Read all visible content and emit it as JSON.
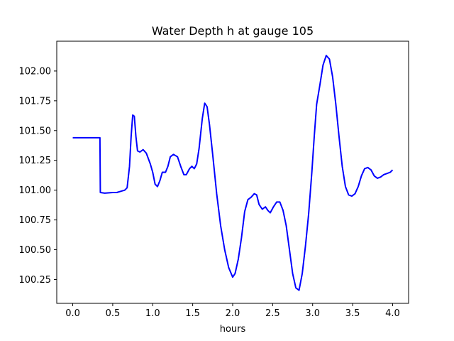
{
  "chart_data": {
    "type": "line",
    "title": "Water Depth h at gauge 105",
    "xlabel": "hours",
    "ylabel": "",
    "xlim": [
      -0.2,
      4.2
    ],
    "ylim": [
      100.05,
      102.25
    ],
    "x_ticks": [
      0.0,
      0.5,
      1.0,
      1.5,
      2.0,
      2.5,
      3.0,
      3.5,
      4.0
    ],
    "x_tick_labels": [
      "0.0",
      "0.5",
      "1.0",
      "1.5",
      "2.0",
      "2.5",
      "3.0",
      "3.5",
      "4.0"
    ],
    "y_ticks": [
      100.25,
      100.5,
      100.75,
      101.0,
      101.25,
      101.5,
      101.75,
      102.0
    ],
    "y_tick_labels": [
      "100.25",
      "100.50",
      "100.75",
      "101.00",
      "101.25",
      "101.50",
      "101.75",
      "102.00"
    ],
    "grid": false,
    "series": [
      {
        "color": "#0000ff",
        "points": [
          [
            0.0,
            101.44
          ],
          [
            0.1,
            101.44
          ],
          [
            0.2,
            101.44
          ],
          [
            0.3,
            101.44
          ],
          [
            0.34,
            101.44
          ],
          [
            0.345,
            100.98
          ],
          [
            0.4,
            100.975
          ],
          [
            0.5,
            100.98
          ],
          [
            0.55,
            100.98
          ],
          [
            0.6,
            100.99
          ],
          [
            0.65,
            101.0
          ],
          [
            0.68,
            101.02
          ],
          [
            0.71,
            101.2
          ],
          [
            0.73,
            101.45
          ],
          [
            0.75,
            101.63
          ],
          [
            0.77,
            101.62
          ],
          [
            0.79,
            101.45
          ],
          [
            0.81,
            101.33
          ],
          [
            0.84,
            101.32
          ],
          [
            0.88,
            101.34
          ],
          [
            0.92,
            101.31
          ],
          [
            0.97,
            101.22
          ],
          [
            1.0,
            101.15
          ],
          [
            1.03,
            101.05
          ],
          [
            1.06,
            101.03
          ],
          [
            1.09,
            101.08
          ],
          [
            1.12,
            101.15
          ],
          [
            1.16,
            101.15
          ],
          [
            1.19,
            101.2
          ],
          [
            1.22,
            101.28
          ],
          [
            1.26,
            101.3
          ],
          [
            1.31,
            101.28
          ],
          [
            1.35,
            101.2
          ],
          [
            1.39,
            101.13
          ],
          [
            1.42,
            101.13
          ],
          [
            1.46,
            101.18
          ],
          [
            1.49,
            101.2
          ],
          [
            1.52,
            101.18
          ],
          [
            1.55,
            101.22
          ],
          [
            1.58,
            101.35
          ],
          [
            1.62,
            101.6
          ],
          [
            1.65,
            101.73
          ],
          [
            1.68,
            101.7
          ],
          [
            1.71,
            101.55
          ],
          [
            1.75,
            101.3
          ],
          [
            1.8,
            100.97
          ],
          [
            1.85,
            100.7
          ],
          [
            1.9,
            100.5
          ],
          [
            1.95,
            100.35
          ],
          [
            2.0,
            100.27
          ],
          [
            2.03,
            100.3
          ],
          [
            2.07,
            100.42
          ],
          [
            2.11,
            100.6
          ],
          [
            2.15,
            100.82
          ],
          [
            2.19,
            100.92
          ],
          [
            2.23,
            100.94
          ],
          [
            2.27,
            100.97
          ],
          [
            2.3,
            100.96
          ],
          [
            2.33,
            100.88
          ],
          [
            2.37,
            100.84
          ],
          [
            2.41,
            100.86
          ],
          [
            2.44,
            100.83
          ],
          [
            2.47,
            100.81
          ],
          [
            2.51,
            100.86
          ],
          [
            2.55,
            100.9
          ],
          [
            2.59,
            100.9
          ],
          [
            2.63,
            100.83
          ],
          [
            2.67,
            100.7
          ],
          [
            2.71,
            100.5
          ],
          [
            2.75,
            100.3
          ],
          [
            2.79,
            100.18
          ],
          [
            2.83,
            100.16
          ],
          [
            2.87,
            100.3
          ],
          [
            2.91,
            100.53
          ],
          [
            2.95,
            100.8
          ],
          [
            2.99,
            101.15
          ],
          [
            3.02,
            101.45
          ],
          [
            3.05,
            101.72
          ],
          [
            3.09,
            101.88
          ],
          [
            3.13,
            102.05
          ],
          [
            3.17,
            102.13
          ],
          [
            3.21,
            102.1
          ],
          [
            3.25,
            101.95
          ],
          [
            3.29,
            101.72
          ],
          [
            3.33,
            101.45
          ],
          [
            3.37,
            101.2
          ],
          [
            3.41,
            101.03
          ],
          [
            3.45,
            100.96
          ],
          [
            3.49,
            100.95
          ],
          [
            3.53,
            100.97
          ],
          [
            3.57,
            101.03
          ],
          [
            3.61,
            101.12
          ],
          [
            3.65,
            101.18
          ],
          [
            3.69,
            101.19
          ],
          [
            3.73,
            101.17
          ],
          [
            3.77,
            101.12
          ],
          [
            3.81,
            101.1
          ],
          [
            3.85,
            101.11
          ],
          [
            3.89,
            101.13
          ],
          [
            3.93,
            101.14
          ],
          [
            3.97,
            101.15
          ],
          [
            4.0,
            101.17
          ]
        ]
      }
    ]
  }
}
